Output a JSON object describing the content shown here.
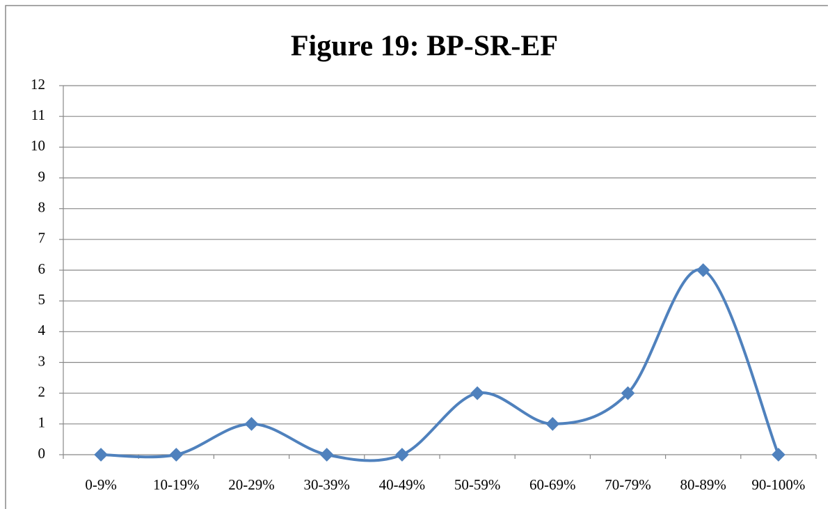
{
  "chart_data": {
    "type": "line",
    "title": "Figure 19: BP-SR-EF",
    "categories": [
      "0-9%",
      "10-19%",
      "20-29%",
      "30-39%",
      "40-49%",
      "50-59%",
      "60-69%",
      "70-79%",
      "80-89%",
      "90-100%"
    ],
    "values": [
      0,
      0,
      1,
      0,
      0,
      2,
      1,
      2,
      6,
      0
    ],
    "color": "#4f81bd",
    "ylim": [
      0,
      12
    ],
    "yticks": [
      0,
      1,
      2,
      3,
      4,
      5,
      6,
      7,
      8,
      9,
      10,
      11,
      12
    ],
    "grid": true,
    "smooth": true
  }
}
